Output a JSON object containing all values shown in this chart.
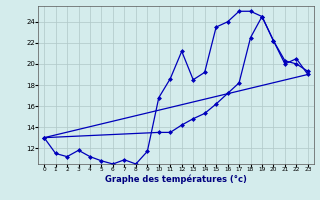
{
  "xlabel": "Graphe des températures (°c)",
  "bg_color": "#d4ecec",
  "line_color": "#0000bb",
  "grid_color": "#b0c8c8",
  "ylim": [
    10.5,
    25.5
  ],
  "xlim": [
    -0.5,
    23.5
  ],
  "yticks": [
    12,
    14,
    16,
    18,
    20,
    22,
    24
  ],
  "xticks": [
    0,
    1,
    2,
    3,
    4,
    5,
    6,
    7,
    8,
    9,
    10,
    11,
    12,
    13,
    14,
    15,
    16,
    17,
    18,
    19,
    20,
    21,
    22,
    23
  ],
  "series1_x": [
    0,
    1,
    2,
    3,
    4,
    5,
    6,
    7,
    8,
    9,
    10,
    11,
    12,
    13,
    14,
    15,
    16,
    17,
    18,
    19,
    20,
    21,
    22,
    23
  ],
  "series1_y": [
    13.0,
    11.5,
    11.2,
    11.8,
    11.2,
    10.8,
    10.5,
    10.9,
    10.5,
    11.7,
    16.8,
    18.6,
    21.2,
    18.5,
    19.2,
    23.5,
    24.0,
    25.0,
    25.0,
    24.5,
    22.2,
    20.3,
    20.0,
    19.3
  ],
  "series2_x": [
    0,
    23
  ],
  "series2_y": [
    13.0,
    19.0
  ],
  "series3_x": [
    0,
    10,
    11,
    12,
    13,
    14,
    15,
    16,
    17,
    18,
    19,
    20,
    21,
    22,
    23
  ],
  "series3_y": [
    13.0,
    13.5,
    13.5,
    14.2,
    14.8,
    15.3,
    16.2,
    17.2,
    18.2,
    22.5,
    24.5,
    22.2,
    20.0,
    20.5,
    19.0
  ]
}
